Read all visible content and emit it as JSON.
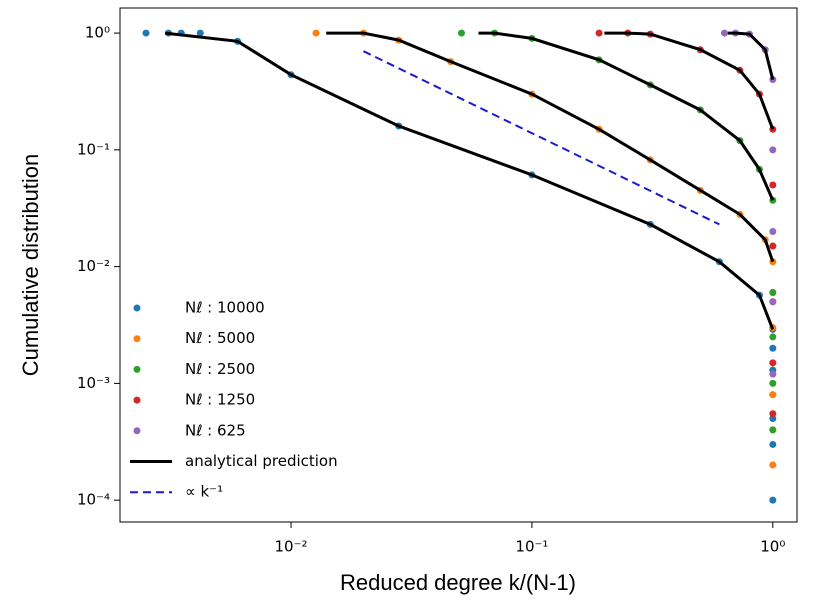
{
  "chart_data": {
    "type": "scatter",
    "x_label": "Reduced degree  k/(N-1)",
    "y_label": "Cumulative distribution",
    "x_scale": "log",
    "y_scale": "log",
    "xlim": [
      0.00195,
      1.26
    ],
    "ylim": [
      6.5e-05,
      1.64
    ],
    "xticks": [
      {
        "value": 0.01,
        "label": "10⁻²"
      },
      {
        "value": 0.1,
        "label": "10⁻¹"
      },
      {
        "value": 1,
        "label": "10⁰"
      }
    ],
    "yticks": [
      {
        "value": 0.0001,
        "label": "10⁻⁴"
      },
      {
        "value": 0.001,
        "label": "10⁻³"
      },
      {
        "value": 0.01,
        "label": "10⁻²"
      },
      {
        "value": 0.1,
        "label": "10⁻¹"
      },
      {
        "value": 1,
        "label": "10⁰"
      }
    ],
    "legend": "lower left",
    "series": [
      {
        "name": "Nℓ : 10000",
        "color": "#1f77b4",
        "kind": "scatter",
        "x": [
          0.0025,
          0.0031,
          0.0035,
          0.0042,
          0.006,
          0.01,
          0.028,
          0.1,
          0.31,
          0.6,
          0.88,
          1,
          1,
          1,
          1,
          1,
          1,
          1
        ],
        "values": [
          1,
          1,
          1,
          1,
          0.85,
          0.44,
          0.16,
          0.061,
          0.023,
          0.011,
          0.0057,
          0.0029,
          0.002,
          0.0013,
          0.0008,
          0.0005,
          0.0003,
          0.0001
        ]
      },
      {
        "name": "Nℓ : 5000",
        "color": "#ff7f0e",
        "kind": "scatter",
        "x": [
          0.0127,
          0.02,
          0.028,
          0.046,
          0.1,
          0.19,
          0.31,
          0.5,
          0.73,
          0.93,
          1,
          1,
          1,
          1,
          1,
          1,
          1
        ],
        "values": [
          1,
          1,
          0.87,
          0.57,
          0.3,
          0.15,
          0.082,
          0.045,
          0.028,
          0.017,
          0.011,
          0.006,
          0.003,
          0.0015,
          0.0008,
          0.0004,
          0.0002
        ]
      },
      {
        "name": "Nℓ : 2500",
        "color": "#2ca02c",
        "kind": "scatter",
        "x": [
          0.051,
          0.07,
          0.1,
          0.19,
          0.31,
          0.5,
          0.73,
          0.88,
          1,
          1,
          1,
          1,
          1,
          1
        ],
        "values": [
          1,
          1,
          0.9,
          0.59,
          0.36,
          0.22,
          0.12,
          0.068,
          0.037,
          0.015,
          0.006,
          0.0025,
          0.001,
          0.0004
        ]
      },
      {
        "name": "Nℓ : 1250",
        "color": "#d62728",
        "kind": "scatter",
        "x": [
          0.19,
          0.25,
          0.31,
          0.5,
          0.73,
          0.88,
          1,
          1,
          1,
          1,
          1,
          1
        ],
        "values": [
          1,
          1,
          0.98,
          0.72,
          0.48,
          0.3,
          0.15,
          0.05,
          0.015,
          0.005,
          0.0015,
          0.00055
        ]
      },
      {
        "name": "Nℓ : 625",
        "color": "#9467bd",
        "kind": "scatter",
        "x": [
          0.63,
          0.7,
          0.8,
          0.93,
          1,
          1,
          1,
          1,
          1
        ],
        "values": [
          1,
          1,
          0.98,
          0.72,
          0.4,
          0.1,
          0.02,
          0.005,
          0.0012
        ]
      },
      {
        "name": "analytical prediction",
        "color": "#000000",
        "kind": "line",
        "x": [
          0.003,
          0.006,
          0.01,
          0.028,
          0.1,
          0.31,
          0.6,
          0.88,
          1,
          null,
          0.014,
          0.02,
          0.028,
          0.046,
          0.1,
          0.19,
          0.31,
          0.5,
          0.73,
          0.93,
          1,
          null,
          0.06,
          0.07,
          0.1,
          0.19,
          0.31,
          0.5,
          0.73,
          0.88,
          1,
          null,
          0.2,
          0.25,
          0.31,
          0.5,
          0.73,
          0.88,
          1,
          null,
          0.65,
          0.7,
          0.8,
          0.93,
          1
        ],
        "values": [
          1,
          0.85,
          0.44,
          0.16,
          0.061,
          0.023,
          0.011,
          0.0057,
          0.0029,
          null,
          1,
          1,
          0.87,
          0.57,
          0.3,
          0.15,
          0.082,
          0.045,
          0.028,
          0.017,
          0.011,
          null,
          1,
          1,
          0.9,
          0.59,
          0.36,
          0.22,
          0.12,
          0.068,
          0.037,
          null,
          1,
          1,
          0.98,
          0.72,
          0.48,
          0.3,
          0.15,
          null,
          1,
          1,
          0.98,
          0.72,
          0.4
        ]
      },
      {
        "name": "∝ k⁻¹",
        "color": "#1a1acc",
        "kind": "dashed",
        "x": [
          0.02,
          0.6
        ],
        "values": [
          0.7,
          0.023
        ]
      }
    ]
  }
}
